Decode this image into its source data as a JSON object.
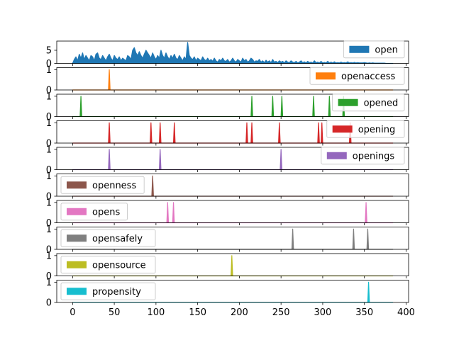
{
  "chart_data": {
    "type": "area",
    "x_range": [
      0,
      384
    ],
    "xlim": [
      -19,
      403
    ],
    "x_ticks": [
      "0",
      "50",
      "100",
      "150",
      "200",
      "250",
      "300",
      "350",
      "400"
    ],
    "x_tick_values": [
      0,
      50,
      100,
      150,
      200,
      250,
      300,
      350,
      400
    ],
    "series": [
      {
        "name": "open",
        "color": "#1f77b4",
        "ylim": [
          0,
          8.5
        ],
        "y_ticks": [
          "0",
          "5"
        ],
        "y_tick_values": [
          0,
          5
        ],
        "legend": "right",
        "points": [
          [
            0,
            0
          ],
          [
            2,
            1.5
          ],
          [
            4,
            2.5
          ],
          [
            6,
            1
          ],
          [
            8,
            3.5
          ],
          [
            10,
            2
          ],
          [
            12,
            4
          ],
          [
            14,
            1.5
          ],
          [
            16,
            3
          ],
          [
            18,
            2
          ],
          [
            20,
            1
          ],
          [
            22,
            3
          ],
          [
            24,
            2.5
          ],
          [
            26,
            1
          ],
          [
            28,
            3.5
          ],
          [
            30,
            4
          ],
          [
            32,
            2
          ],
          [
            34,
            1.5
          ],
          [
            36,
            3
          ],
          [
            38,
            2
          ],
          [
            40,
            1
          ],
          [
            42,
            2.5
          ],
          [
            44,
            3.5
          ],
          [
            46,
            2
          ],
          [
            48,
            1
          ],
          [
            50,
            3
          ],
          [
            52,
            2
          ],
          [
            54,
            1.5
          ],
          [
            56,
            2.5
          ],
          [
            58,
            1
          ],
          [
            60,
            2
          ],
          [
            62,
            1.5
          ],
          [
            64,
            1
          ],
          [
            66,
            3
          ],
          [
            68,
            2.5
          ],
          [
            70,
            1.5
          ],
          [
            72,
            5
          ],
          [
            74,
            6
          ],
          [
            76,
            4
          ],
          [
            78,
            3
          ],
          [
            80,
            4.5
          ],
          [
            82,
            3
          ],
          [
            84,
            2
          ],
          [
            86,
            3.5
          ],
          [
            88,
            5
          ],
          [
            90,
            4
          ],
          [
            92,
            3
          ],
          [
            94,
            2
          ],
          [
            96,
            4
          ],
          [
            98,
            2.5
          ],
          [
            100,
            1.5
          ],
          [
            102,
            3
          ],
          [
            104,
            2
          ],
          [
            106,
            5
          ],
          [
            108,
            3
          ],
          [
            110,
            2
          ],
          [
            112,
            4
          ],
          [
            114,
            2.5
          ],
          [
            116,
            1.5
          ],
          [
            118,
            3
          ],
          [
            120,
            2
          ],
          [
            122,
            3.5
          ],
          [
            124,
            2
          ],
          [
            126,
            1.5
          ],
          [
            128,
            3
          ],
          [
            130,
            2
          ],
          [
            132,
            1
          ],
          [
            134,
            2.5
          ],
          [
            136,
            1.5
          ],
          [
            138,
            8
          ],
          [
            140,
            3
          ],
          [
            142,
            2
          ],
          [
            144,
            1.5
          ],
          [
            146,
            2.5
          ],
          [
            148,
            1
          ],
          [
            150,
            2
          ],
          [
            152,
            1.5
          ],
          [
            154,
            1
          ],
          [
            156,
            2.5
          ],
          [
            158,
            1.5
          ],
          [
            160,
            1
          ],
          [
            162,
            2
          ],
          [
            164,
            1
          ],
          [
            166,
            1.5
          ],
          [
            168,
            0.8
          ],
          [
            170,
            2
          ],
          [
            172,
            1
          ],
          [
            174,
            0.5
          ],
          [
            176,
            1.5
          ],
          [
            178,
            1
          ],
          [
            180,
            2
          ],
          [
            182,
            1
          ],
          [
            184,
            0.8
          ],
          [
            186,
            1.5
          ],
          [
            188,
            0.5
          ],
          [
            190,
            1
          ],
          [
            192,
            2
          ],
          [
            194,
            1
          ],
          [
            196,
            0.5
          ],
          [
            198,
            1.5
          ],
          [
            200,
            1
          ],
          [
            202,
            0.5
          ],
          [
            204,
            2
          ],
          [
            206,
            1
          ],
          [
            208,
            1.5
          ],
          [
            210,
            0.5
          ],
          [
            212,
            1
          ],
          [
            214,
            2
          ],
          [
            216,
            1.5
          ],
          [
            218,
            0.5
          ],
          [
            220,
            1
          ],
          [
            222,
            0.8
          ],
          [
            224,
            1.5
          ],
          [
            226,
            0.5
          ],
          [
            228,
            1
          ],
          [
            230,
            0.3
          ],
          [
            232,
            1.2
          ],
          [
            234,
            0.5
          ],
          [
            236,
            1
          ],
          [
            238,
            0.3
          ],
          [
            240,
            1.5
          ],
          [
            242,
            0.5
          ],
          [
            244,
            0.8
          ],
          [
            246,
            0.3
          ],
          [
            248,
            1
          ],
          [
            250,
            0.5
          ],
          [
            252,
            0.8
          ],
          [
            254,
            0.2
          ],
          [
            256,
            1
          ],
          [
            258,
            0.5
          ],
          [
            260,
            0.3
          ],
          [
            262,
            1
          ],
          [
            264,
            0.5
          ],
          [
            266,
            0.3
          ],
          [
            268,
            0.8
          ],
          [
            270,
            0.2
          ],
          [
            272,
            0.5
          ],
          [
            274,
            1
          ],
          [
            276,
            0.3
          ],
          [
            278,
            0.6
          ],
          [
            280,
            0.2
          ],
          [
            282,
            0.8
          ],
          [
            284,
            0.3
          ],
          [
            286,
            0.5
          ],
          [
            288,
            0.2
          ],
          [
            290,
            1
          ],
          [
            292,
            0.3
          ],
          [
            294,
            0.5
          ],
          [
            296,
            0.2
          ],
          [
            298,
            0.8
          ],
          [
            300,
            0.2
          ],
          [
            302,
            0.4
          ],
          [
            304,
            0.2
          ],
          [
            306,
            0.8
          ],
          [
            308,
            0.2
          ],
          [
            310,
            0.5
          ],
          [
            312,
            0.2
          ],
          [
            314,
            0.6
          ],
          [
            316,
            0.2
          ],
          [
            318,
            0.3
          ],
          [
            320,
            0.2
          ],
          [
            322,
            0.5
          ],
          [
            324,
            0.2
          ],
          [
            326,
            0.3
          ],
          [
            328,
            0.2
          ],
          [
            330,
            0.6
          ],
          [
            332,
            0.2
          ],
          [
            334,
            0.3
          ],
          [
            336,
            0.2
          ],
          [
            338,
            0.4
          ],
          [
            340,
            0.2
          ],
          [
            342,
            0.3
          ],
          [
            344,
            0.2
          ],
          [
            346,
            0.2
          ],
          [
            348,
            0.2
          ],
          [
            350,
            0.3
          ],
          [
            352,
            0.2
          ],
          [
            354,
            0.1
          ],
          [
            356,
            0.2
          ],
          [
            358,
            0.1
          ],
          [
            360,
            0.2
          ],
          [
            362,
            0.1
          ],
          [
            364,
            0.1
          ],
          [
            366,
            0.1
          ],
          [
            368,
            0.1
          ],
          [
            370,
            0.1
          ],
          [
            372,
            0.1
          ],
          [
            374,
            0.1
          ],
          [
            376,
            0
          ],
          [
            378,
            0
          ],
          [
            380,
            0
          ],
          [
            382,
            0
          ],
          [
            384,
            0
          ]
        ]
      },
      {
        "name": "openaccess",
        "color": "#ff7f0e",
        "ylim": [
          0,
          1.1
        ],
        "y_ticks": [
          "0",
          "1"
        ],
        "y_tick_values": [
          0,
          1
        ],
        "legend": "right",
        "spikes": [
          44
        ]
      },
      {
        "name": "opened",
        "color": "#2ca02c",
        "ylim": [
          0,
          1.1
        ],
        "y_ticks": [
          "0",
          "1"
        ],
        "y_tick_values": [
          0,
          1
        ],
        "legend": "right",
        "spikes": [
          10,
          215,
          240,
          251,
          289,
          308,
          325
        ]
      },
      {
        "name": "opening",
        "color": "#d62728",
        "ylim": [
          0,
          1.1
        ],
        "y_ticks": [
          "0",
          "1"
        ],
        "y_tick_values": [
          0,
          1
        ],
        "legend": "right",
        "spikes": [
          44,
          94,
          105,
          122,
          209,
          215,
          248,
          295,
          299,
          333
        ]
      },
      {
        "name": "openings",
        "color": "#9467bd",
        "ylim": [
          0,
          1.1
        ],
        "y_ticks": [
          "0",
          "1"
        ],
        "y_tick_values": [
          0,
          1
        ],
        "legend": "right",
        "spikes": [
          44,
          105,
          250
        ]
      },
      {
        "name": "openness",
        "color": "#8c564b",
        "ylim": [
          0,
          1.1
        ],
        "y_ticks": [
          "0",
          "1"
        ],
        "y_tick_values": [
          0,
          1
        ],
        "legend": "left",
        "spikes": [
          96
        ]
      },
      {
        "name": "opens",
        "color": "#e377c2",
        "ylim": [
          0,
          1.1
        ],
        "y_ticks": [
          "0",
          "1"
        ],
        "y_tick_values": [
          0,
          1
        ],
        "legend": "left",
        "spikes": [
          114,
          121,
          352
        ]
      },
      {
        "name": "opensafely",
        "color": "#7f7f7f",
        "ylim": [
          0,
          1.1
        ],
        "y_ticks": [
          "0",
          "1"
        ],
        "y_tick_values": [
          0,
          1
        ],
        "legend": "left",
        "spikes": [
          264,
          337,
          354
        ]
      },
      {
        "name": "opensource",
        "color": "#bcbd22",
        "ylim": [
          0,
          1.1
        ],
        "y_ticks": [
          "0",
          "1"
        ],
        "y_tick_values": [
          0,
          1
        ],
        "legend": "left",
        "spikes": [
          191
        ]
      },
      {
        "name": "propensity",
        "color": "#17becf",
        "ylim": [
          0,
          1.1
        ],
        "y_ticks": [
          "0",
          "1"
        ],
        "y_tick_values": [
          0,
          1
        ],
        "legend": "left",
        "spikes": [
          355
        ]
      }
    ]
  }
}
